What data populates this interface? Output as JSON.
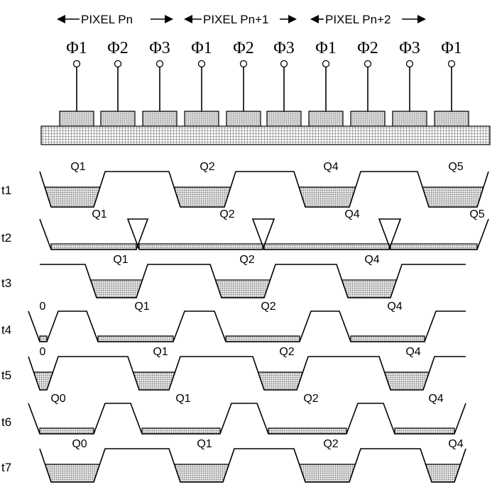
{
  "pixels": [
    {
      "label": "PIXEL Pn"
    },
    {
      "label": "PIXEL Pn+1"
    },
    {
      "label": "PIXEL Pn+2"
    }
  ],
  "phases": [
    "Φ1",
    "Φ2",
    "Φ3",
    "Φ1",
    "Φ2",
    "Φ3",
    "Φ1",
    "Φ2",
    "Φ3",
    "Φ1"
  ],
  "rows": [
    {
      "label": "t1",
      "charges": [
        "Q1",
        "Q2",
        "Q4",
        "Q5"
      ]
    },
    {
      "label": "t2",
      "charges": [
        "Q1",
        "Q2",
        "Q4",
        "Q5"
      ]
    },
    {
      "label": "t3",
      "charges": [
        "Q1",
        "Q2",
        "Q4"
      ]
    },
    {
      "label": "t4",
      "charges": [
        "0",
        "Q1",
        "Q2",
        "Q4"
      ]
    },
    {
      "label": "t5",
      "charges": [
        "0",
        "Q1",
        "Q2",
        "Q4"
      ]
    },
    {
      "label": "t6",
      "charges": [
        "Q0",
        "Q1",
        "Q2",
        "Q4"
      ]
    },
    {
      "label": "t7",
      "charges": [
        "Q0",
        "Q1",
        "Q2",
        "Q4"
      ]
    }
  ]
}
